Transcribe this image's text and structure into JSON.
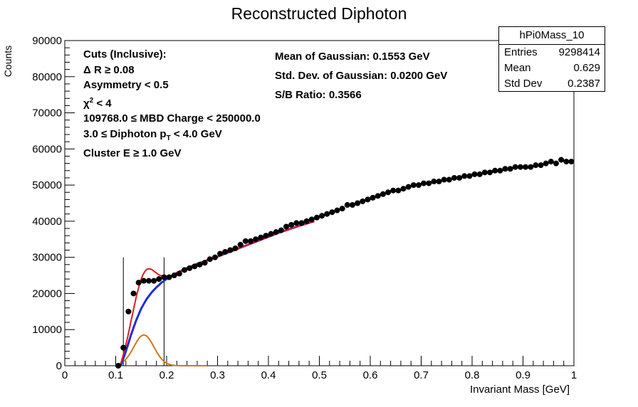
{
  "title": "Reconstructed Diphoton",
  "cuts": {
    "header": "Cuts (Inclusive):",
    "dr": "Δ R  ≥ 0.08",
    "asym": "Asymmetry < 0.5",
    "chi_sym": "χ",
    "chi_sup": "2",
    "chi_rest": " < 4",
    "mbd": "109768.0  ≤ MBD Charge < 250000.0",
    "pt_pre": "3.0  ≤ Diphoton p",
    "pt_sub": "T",
    "pt_post": " < 4.0 GeV",
    "cluster": "Cluster E  ≥ 1.0 GeV"
  },
  "fit": {
    "mean": "Mean of Gaussian: 0.1553 GeV",
    "std": "Std. Dev. of Gaussian: 0.0200 GeV",
    "sb": "S/B Ratio: 0.3566"
  },
  "stats": {
    "title": "hPi0Mass_10",
    "entries_label": "Entries",
    "entries_value": "9298414",
    "mean_label": "Mean",
    "mean_value": "0.629",
    "std_label": "Std Dev",
    "std_value": "0.2387"
  },
  "colors": {
    "total_fit": "#e41a1c",
    "background_fit": "#1f2ed6",
    "signal_fit": "#c87a1a",
    "data": "#000000",
    "lines": "#000000"
  },
  "chart_data": {
    "type": "scatter",
    "xlabel": "Invariant Mass [GeV]",
    "ylabel": "Counts",
    "xlim": [
      0,
      1
    ],
    "ylim": [
      0,
      90000
    ],
    "x_ticks": [
      "0",
      "0.1",
      "0.2",
      "0.3",
      "0.4",
      "0.5",
      "0.6",
      "0.7",
      "0.8",
      "0.9",
      "1"
    ],
    "y_ticks": [
      "0",
      "10000",
      "20000",
      "30000",
      "40000",
      "50000",
      "60000",
      "70000",
      "80000",
      "90000"
    ],
    "vlines": [
      0.115,
      0.195
    ],
    "vline_top": 30000,
    "data": {
      "x": [
        0.105,
        0.115,
        0.125,
        0.135,
        0.145,
        0.155,
        0.165,
        0.175,
        0.185,
        0.195,
        0.205,
        0.215,
        0.225,
        0.235,
        0.245,
        0.255,
        0.265,
        0.275,
        0.285,
        0.295,
        0.305,
        0.315,
        0.325,
        0.335,
        0.345,
        0.355,
        0.365,
        0.375,
        0.385,
        0.395,
        0.405,
        0.415,
        0.425,
        0.435,
        0.445,
        0.455,
        0.465,
        0.475,
        0.485,
        0.495,
        0.505,
        0.515,
        0.525,
        0.535,
        0.545,
        0.555,
        0.565,
        0.575,
        0.585,
        0.595,
        0.605,
        0.615,
        0.625,
        0.635,
        0.645,
        0.655,
        0.665,
        0.675,
        0.685,
        0.695,
        0.705,
        0.715,
        0.725,
        0.735,
        0.745,
        0.755,
        0.765,
        0.775,
        0.785,
        0.795,
        0.805,
        0.815,
        0.825,
        0.835,
        0.845,
        0.855,
        0.865,
        0.875,
        0.885,
        0.895,
        0.905,
        0.915,
        0.925,
        0.935,
        0.945,
        0.955,
        0.965,
        0.975,
        0.985,
        0.995
      ],
      "y": [
        0,
        5000,
        15000,
        20000,
        23000,
        23500,
        23500,
        23500,
        24000,
        24500,
        24500,
        25000,
        25500,
        26500,
        27000,
        27500,
        28000,
        28500,
        29500,
        30000,
        31000,
        31500,
        32000,
        32500,
        33500,
        34500,
        34500,
        35000,
        35500,
        36000,
        36500,
        37000,
        37500,
        38500,
        39000,
        39500,
        39500,
        40000,
        40500,
        41000,
        41500,
        42000,
        42500,
        43000,
        43500,
        44500,
        44500,
        45000,
        45500,
        46000,
        46500,
        47000,
        47500,
        48000,
        48500,
        48500,
        49000,
        49500,
        50000,
        50000,
        50500,
        50500,
        51000,
        51000,
        51500,
        51500,
        52000,
        52000,
        52500,
        52500,
        53000,
        53000,
        53500,
        53500,
        54000,
        54000,
        54500,
        54500,
        55000,
        55000,
        55000,
        55000,
        55500,
        55500,
        56000,
        56500,
        56000,
        57000,
        56500,
        56500
      ]
    },
    "fit_range": [
      0.11,
      0.49
    ],
    "gaussian": {
      "amplitude": 8500,
      "mean": 0.1553,
      "sigma": 0.02
    },
    "background_curve": {
      "x": [
        0.11,
        0.12,
        0.13,
        0.14,
        0.15,
        0.16,
        0.17,
        0.18,
        0.19,
        0.2,
        0.22,
        0.24,
        0.26,
        0.28,
        0.3,
        0.34,
        0.38,
        0.42,
        0.46,
        0.49
      ],
      "y": [
        0,
        4000,
        8500,
        12500,
        15800,
        18300,
        20200,
        21700,
        23000,
        24000,
        25700,
        27000,
        28200,
        29200,
        30200,
        32400,
        34600,
        36800,
        38700,
        40000
      ]
    },
    "signal_range": [
      0.1,
      0.28
    ]
  }
}
